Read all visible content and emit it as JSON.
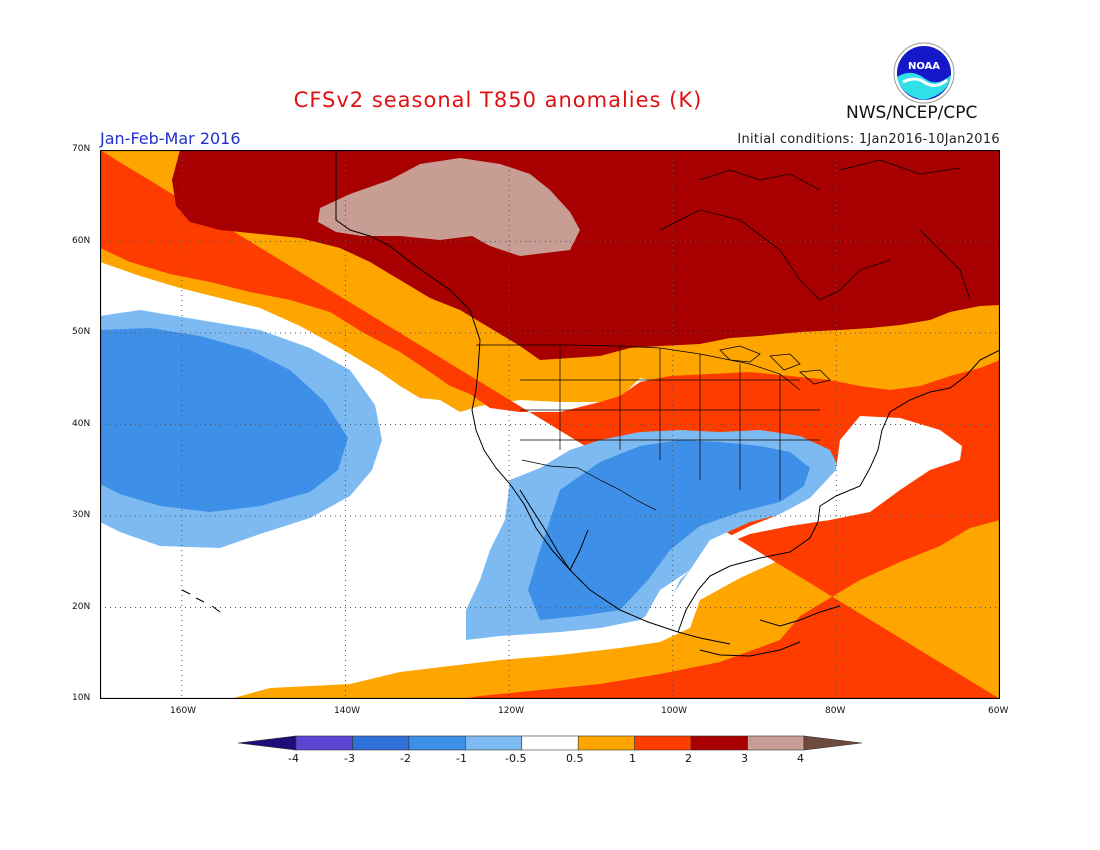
{
  "header": {
    "title": "CFSv2 seasonal T850 anomalies (K)",
    "season": "Jan-Feb-Mar 2016",
    "initial_conditions": "Initial conditions: 1Jan2016-10Jan2016",
    "agency": "NWS/NCEP/CPC",
    "logo_text": "NOAA"
  },
  "map": {
    "lat_labels": [
      "70N",
      "60N",
      "50N",
      "40N",
      "30N",
      "20N",
      "10N"
    ],
    "lon_labels": [
      "160W",
      "140W",
      "120W",
      "100W",
      "80W",
      "60W"
    ],
    "lat_range": [
      10,
      70
    ],
    "lon_range": [
      -170,
      -60
    ],
    "grid": "dotted"
  },
  "colorbar": {
    "labels": [
      "-4",
      "-3",
      "-2",
      "-1",
      "-0.5",
      "0.5",
      "1",
      "2",
      "3",
      "4"
    ],
    "colors": [
      "#1e0a78",
      "#5a46d2",
      "#2f6fd8",
      "#3d8fe8",
      "#7dbaf2",
      "#ffffff",
      "#ffa500",
      "#ff3c00",
      "#a80000",
      "#c89e94",
      "#6e4a3c"
    ]
  }
}
